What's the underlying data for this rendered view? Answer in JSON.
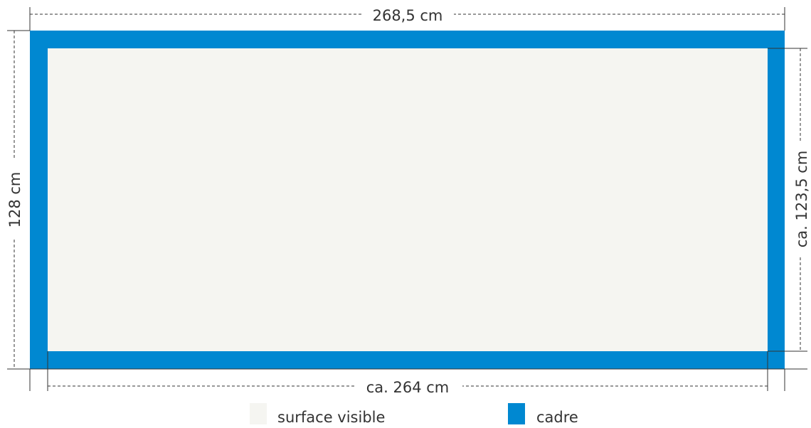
{
  "dimensions": {
    "top": "268,5 cm",
    "left": "128 cm",
    "right": "ca. 123,5 cm",
    "bottom": "ca. 264 cm"
  },
  "legend": [
    {
      "label": "surface visible"
    },
    {
      "label": "cadre"
    }
  ]
}
